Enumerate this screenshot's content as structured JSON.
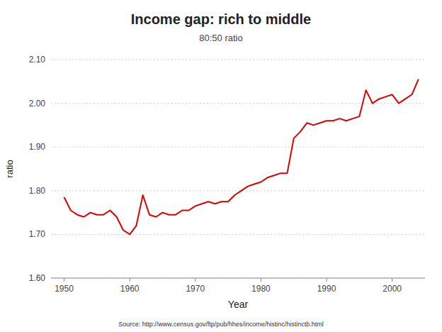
{
  "chart_data": {
    "type": "line",
    "title": "Income gap: rich to middle",
    "subtitle": "80:50 ratio",
    "xlabel": "Year",
    "ylabel": "ratio",
    "source": "Source: http://www.census.gov/ftp/pub/hhes/income/histinc/histinctb.html",
    "color": "#dd0000",
    "grid": true,
    "xlim": [
      1948,
      2005
    ],
    "ylim": [
      1.6,
      2.1
    ],
    "xticks": [
      1950,
      1960,
      1970,
      1980,
      1990,
      2000
    ],
    "yticks": [
      {
        "value": 1.6,
        "label": "1.60"
      },
      {
        "value": 1.7,
        "label": "1.70"
      },
      {
        "value": 1.8,
        "label": "1.80"
      },
      {
        "value": 1.9,
        "label": "1.90"
      },
      {
        "value": 2.0,
        "label": "2.00"
      },
      {
        "value": 2.1,
        "label": "2.10"
      }
    ],
    "x": [
      1950,
      1951,
      1952,
      1953,
      1954,
      1955,
      1956,
      1957,
      1958,
      1959,
      1960,
      1961,
      1962,
      1963,
      1964,
      1965,
      1966,
      1967,
      1968,
      1969,
      1970,
      1971,
      1972,
      1973,
      1974,
      1975,
      1976,
      1977,
      1978,
      1979,
      1980,
      1981,
      1982,
      1983,
      1984,
      1985,
      1986,
      1987,
      1988,
      1989,
      1990,
      1991,
      1992,
      1993,
      1994,
      1995,
      1996,
      1997,
      1998,
      1999,
      2000,
      2001,
      2002,
      2003,
      2004
    ],
    "values": [
      1.785,
      1.755,
      1.745,
      1.74,
      1.75,
      1.745,
      1.745,
      1.755,
      1.74,
      1.71,
      1.7,
      1.72,
      1.79,
      1.745,
      1.74,
      1.75,
      1.745,
      1.745,
      1.755,
      1.755,
      1.765,
      1.77,
      1.775,
      1.77,
      1.775,
      1.775,
      1.79,
      1.8,
      1.81,
      1.815,
      1.82,
      1.83,
      1.835,
      1.84,
      1.84,
      1.92,
      1.935,
      1.955,
      1.95,
      1.955,
      1.96,
      1.96,
      1.965,
      1.96,
      1.965,
      1.97,
      2.03,
      2.0,
      2.01,
      2.015,
      2.02,
      2.0,
      2.01,
      2.02,
      2.055
    ]
  }
}
